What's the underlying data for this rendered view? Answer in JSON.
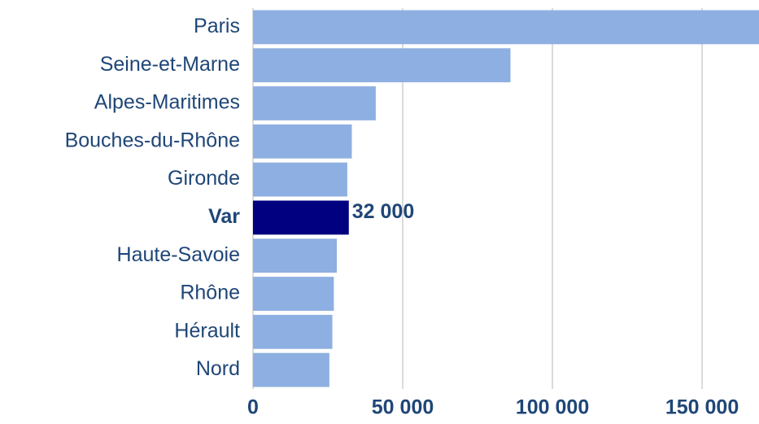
{
  "chart_data": {
    "type": "hbar",
    "categories": [
      "Paris",
      "Seine-et-Marne",
      "Alpes-Maritimes",
      "Bouches-du-Rhône",
      "Gironde",
      "Var",
      "Haute-Savoie",
      "Rhône",
      "Hérault",
      "Nord"
    ],
    "values": [
      169000,
      86000,
      41000,
      33000,
      31500,
      32000,
      28000,
      27000,
      26500,
      25500
    ],
    "value_labels": [
      null,
      null,
      null,
      null,
      null,
      "32 000",
      null,
      null,
      null,
      null
    ],
    "color": "#8eafe1",
    "highlight": "Var",
    "highlight_color": "#000080",
    "xlim": [
      0,
      169000
    ],
    "xticks": [
      0,
      {
        "value": 50000,
        "label": "50 000"
      },
      {
        "value": 100000,
        "label": "100 000"
      },
      {
        "value": 150000,
        "label": "150 000"
      }
    ],
    "grid": true
  }
}
